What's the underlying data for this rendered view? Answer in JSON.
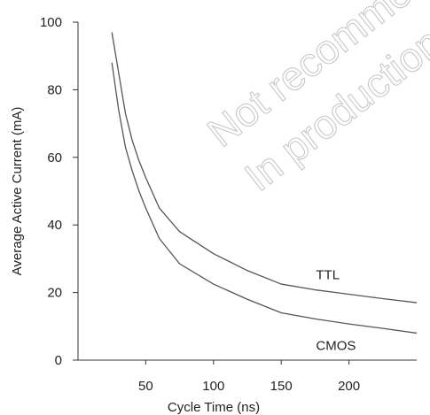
{
  "chart_data": {
    "type": "line",
    "title": "",
    "xlabel": "Cycle Time (ns)",
    "ylabel": "Average Active Current (mA)",
    "xlim": [
      0,
      250
    ],
    "ylim": [
      0,
      100
    ],
    "x_ticks": [
      50,
      100,
      150,
      200
    ],
    "y_ticks": [
      0,
      20,
      40,
      60,
      80,
      100
    ],
    "grid": false,
    "series": [
      {
        "name": "TTL",
        "color": "#555555",
        "points": [
          [
            25,
            97
          ],
          [
            30,
            85
          ],
          [
            35,
            73
          ],
          [
            40,
            65
          ],
          [
            45,
            59
          ],
          [
            50,
            54
          ],
          [
            60,
            45
          ],
          [
            75,
            38
          ],
          [
            100,
            31.5
          ],
          [
            125,
            26.5
          ],
          [
            150,
            22.5
          ],
          [
            175,
            20.8
          ],
          [
            200,
            19.5
          ],
          [
            225,
            18.2
          ],
          [
            250,
            17
          ]
        ]
      },
      {
        "name": "CMOS",
        "color": "#555555",
        "points": [
          [
            25,
            88
          ],
          [
            30,
            74
          ],
          [
            35,
            63
          ],
          [
            40,
            56
          ],
          [
            45,
            50
          ],
          [
            50,
            45
          ],
          [
            60,
            36
          ],
          [
            75,
            28.5
          ],
          [
            100,
            22.5
          ],
          [
            125,
            18
          ],
          [
            150,
            14
          ],
          [
            175,
            12.2
          ],
          [
            200,
            10.7
          ],
          [
            225,
            9.4
          ],
          [
            250,
            8
          ]
        ]
      }
    ],
    "annotations": {
      "watermark_line1": "Not recommended for new designs",
      "watermark_line2": "In production"
    }
  }
}
